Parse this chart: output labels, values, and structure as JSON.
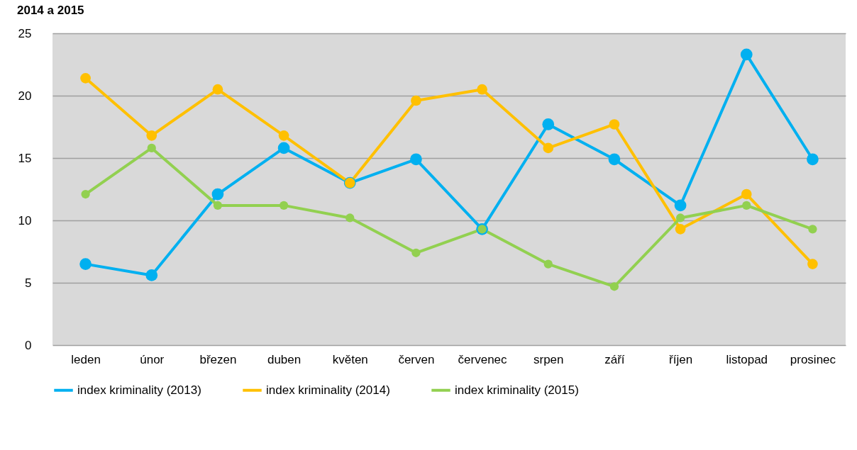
{
  "chart_data": {
    "type": "line",
    "title": "2014 a 2015",
    "categories": [
      "leden",
      "únor",
      "březen",
      "duben",
      "květen",
      "červen",
      "červenec",
      "srpen",
      "září",
      "říjen",
      "listopad",
      "prosinec"
    ],
    "series": [
      {
        "name": "index kriminality (2013)",
        "color": "#00b0f0",
        "values": [
          6.5,
          5.6,
          12.1,
          15.8,
          13.0,
          14.9,
          9.3,
          17.7,
          14.9,
          11.2,
          23.3,
          14.9
        ]
      },
      {
        "name": "index kriminality (2014)",
        "color": "#ffc000",
        "values": [
          21.4,
          16.8,
          20.5,
          16.8,
          13.0,
          19.6,
          20.5,
          15.8,
          17.7,
          9.3,
          12.1,
          6.5
        ]
      },
      {
        "name": "index kriminality (2015)",
        "color": "#92d050",
        "values": [
          12.1,
          15.8,
          11.2,
          11.2,
          10.2,
          7.4,
          9.3,
          6.5,
          4.7,
          10.2,
          11.2,
          9.3
        ]
      }
    ],
    "ylim": [
      0,
      25
    ],
    "yticks": [
      0,
      5,
      10,
      15,
      20,
      25
    ],
    "grid": "y",
    "legend": "bottom",
    "marker": "circle"
  }
}
